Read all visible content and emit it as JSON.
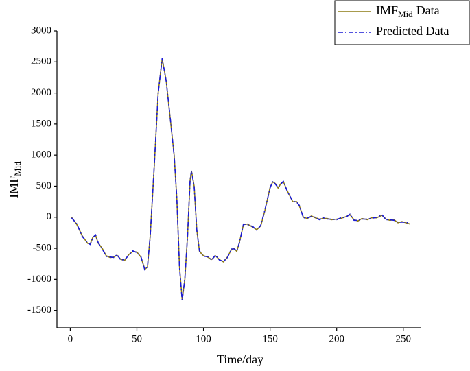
{
  "chart_data": {
    "type": "line",
    "ylabel": {
      "text": "IMF",
      "sub": "Mid"
    },
    "xlabel": "Time/day",
    "x": [
      1,
      5,
      9,
      13,
      15,
      17,
      19,
      21,
      24,
      27,
      30,
      33,
      35,
      38,
      41,
      44,
      47,
      50,
      53,
      56,
      58,
      60,
      63,
      66,
      69,
      72,
      75,
      78,
      80,
      82,
      84,
      86,
      88,
      90,
      91,
      93,
      95,
      97,
      100,
      103,
      106,
      109,
      112,
      115,
      118,
      121,
      123,
      125,
      127,
      130,
      133,
      137,
      140,
      143,
      146,
      150,
      152,
      154,
      156,
      158,
      160,
      163,
      167,
      170,
      172,
      175,
      178,
      181,
      184,
      187,
      190,
      193,
      196,
      200,
      203,
      207,
      210,
      213,
      216,
      219,
      223,
      226,
      230,
      234,
      237,
      240,
      243,
      246,
      249,
      252,
      255
    ],
    "series": [
      {
        "name": "IMF",
        "name_sub": "Mid",
        "name_rest": "Data",
        "color": "#8c7a12",
        "dash": false,
        "values": [
          0,
          -120,
          -300,
          -420,
          -430,
          -320,
          -290,
          -420,
          -500,
          -620,
          -650,
          -640,
          -610,
          -680,
          -690,
          -600,
          -550,
          -560,
          -640,
          -840,
          -800,
          -300,
          800,
          2000,
          2550,
          2200,
          1600,
          1000,
          300,
          -800,
          -1330,
          -1000,
          -300,
          600,
          740,
          500,
          -200,
          -550,
          -620,
          -640,
          -680,
          -620,
          -680,
          -720,
          -640,
          -520,
          -500,
          -550,
          -400,
          -120,
          -110,
          -160,
          -200,
          -140,
          100,
          480,
          570,
          540,
          470,
          540,
          570,
          420,
          250,
          250,
          180,
          0,
          -20,
          20,
          -10,
          -30,
          -20,
          -20,
          -40,
          -30,
          -20,
          10,
          40,
          -40,
          -60,
          -20,
          -40,
          -10,
          -10,
          30,
          -30,
          -50,
          -40,
          -90,
          -70,
          -90,
          -110
        ]
      },
      {
        "name": "Predicted Data",
        "color": "#1a1ad6",
        "dash": true,
        "values": [
          -10,
          -110,
          -310,
          -410,
          -440,
          -330,
          -280,
          -410,
          -510,
          -630,
          -640,
          -650,
          -600,
          -690,
          -680,
          -610,
          -540,
          -570,
          -630,
          -850,
          -790,
          -310,
          810,
          1990,
          2560,
          2190,
          1610,
          990,
          310,
          -810,
          -1340,
          -990,
          -310,
          610,
          750,
          490,
          -210,
          -540,
          -630,
          -630,
          -690,
          -610,
          -690,
          -710,
          -650,
          -510,
          -510,
          -540,
          -410,
          -110,
          -120,
          -150,
          -210,
          -130,
          110,
          470,
          580,
          530,
          480,
          530,
          580,
          410,
          260,
          240,
          190,
          -10,
          -10,
          10,
          0,
          -40,
          -10,
          -30,
          -30,
          -40,
          -10,
          0,
          50,
          -50,
          -50,
          -30,
          -30,
          -20,
          0,
          40,
          -40,
          -40,
          -50,
          -80,
          -80,
          -80,
          -100
        ]
      }
    ],
    "xlim": [
      -10,
      263
    ],
    "xticks": [
      0,
      50,
      100,
      150,
      200,
      250
    ],
    "ylim": [
      -1780,
      3000
    ],
    "yticks": [
      -1500,
      -1000,
      -500,
      0,
      500,
      1000,
      1500,
      2000,
      2500,
      3000
    ],
    "legend": "top-right",
    "grid": false
  }
}
